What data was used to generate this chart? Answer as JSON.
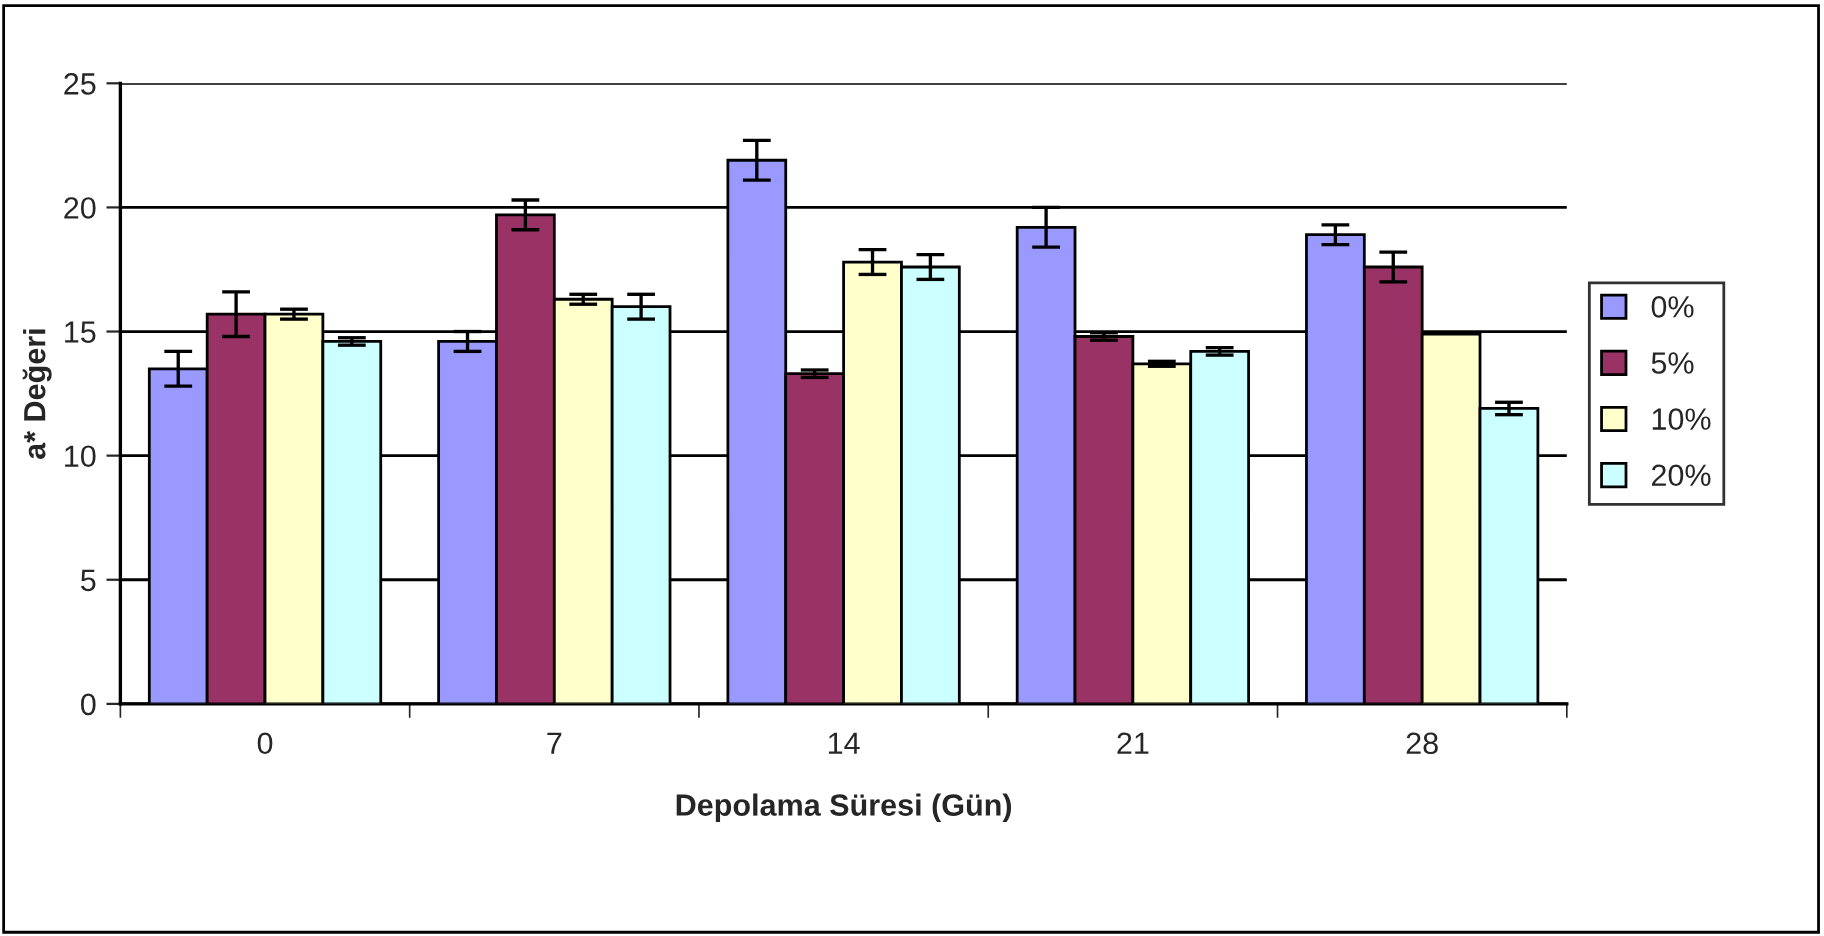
{
  "chart_data": {
    "type": "bar",
    "xlabel": "Depolama Süresi (Gün)",
    "ylabel": "a* Değeri",
    "categories": [
      "0",
      "7",
      "14",
      "21",
      "28"
    ],
    "series": [
      {
        "name": "0%",
        "color": "#9999ff",
        "values": [
          13.5,
          14.6,
          21.9,
          19.2,
          18.9
        ],
        "errors": [
          0.7,
          0.4,
          0.8,
          0.8,
          0.4
        ]
      },
      {
        "name": "5%",
        "color": "#993366",
        "values": [
          15.7,
          19.7,
          13.3,
          14.8,
          17.6
        ],
        "errors": [
          0.9,
          0.6,
          0.15,
          0.15,
          0.6
        ]
      },
      {
        "name": "10%",
        "color": "#ffffcc",
        "values": [
          15.7,
          16.3,
          17.8,
          13.7,
          14.9
        ],
        "errors": [
          0.2,
          0.2,
          0.5,
          0.1,
          null
        ]
      },
      {
        "name": "20%",
        "color": "#ccffff",
        "values": [
          14.6,
          16.0,
          17.6,
          14.2,
          11.9
        ],
        "errors": [
          0.15,
          0.5,
          0.5,
          0.15,
          0.25
        ]
      }
    ],
    "ylim": [
      0,
      25
    ],
    "yticks": [
      0,
      5,
      10,
      15,
      20,
      25
    ],
    "grid": "y",
    "legend": "right"
  }
}
